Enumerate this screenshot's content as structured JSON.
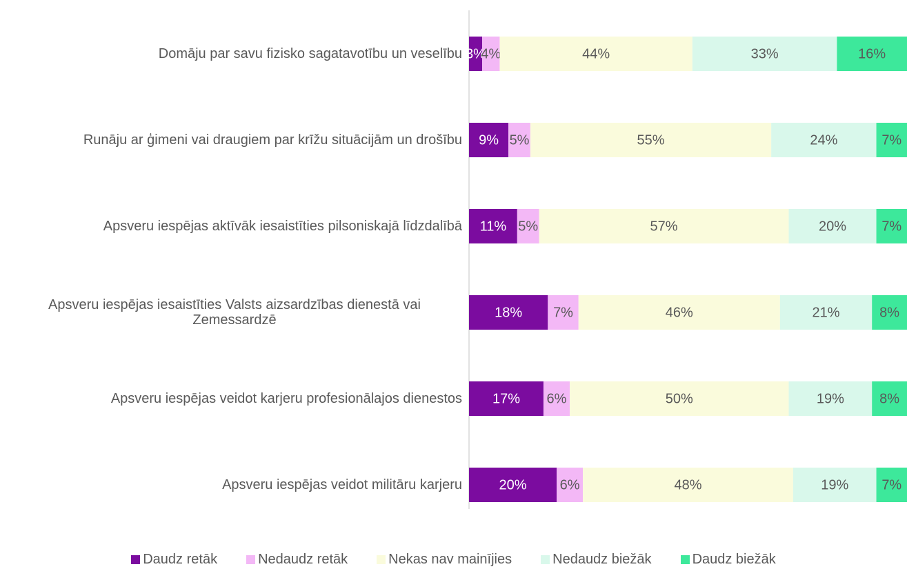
{
  "chart_data": {
    "type": "stacked-bar-horizontal",
    "categories": [
      "Domāju par savu fizisko sagatavotību un veselību",
      "Runāju ar ģimeni vai draugiem par krīžu situācijām un drošību",
      "Apsveru iespējas aktīvāk iesaistīties pilsoniskajā līdzdalībā",
      "Apsveru iespējas iesaistīties Valsts aizsardzības dienestā vai Zemessardzē",
      "Apsveru iespējas veidot karjeru profesionālajos dienestos",
      "Apsveru iespējas veidot militāru karjeru"
    ],
    "series": [
      {
        "name": "Daudz retāk",
        "color": "#7b0c9f",
        "values": [
          3,
          9,
          11,
          18,
          17,
          20
        ],
        "value_labels": [
          "3%",
          "9%",
          "11%",
          "18%",
          "17%",
          "20%"
        ]
      },
      {
        "name": "Nedaudz retāk",
        "color": "#f3b8f6",
        "values": [
          4,
          5,
          5,
          7,
          6,
          6
        ],
        "value_labels": [
          "4%",
          "5%",
          "5%",
          "7%",
          "6%",
          "6%"
        ]
      },
      {
        "name": "Nekas nav mainījies",
        "color": "#fafbdc",
        "values": [
          44,
          55,
          57,
          46,
          50,
          48
        ],
        "value_labels": [
          "44%",
          "55%",
          "57%",
          "46%",
          "50%",
          "48%"
        ]
      },
      {
        "name": "Nedaudz biežāk",
        "color": "#d9f8eb",
        "values": [
          33,
          24,
          20,
          21,
          19,
          19
        ],
        "value_labels": [
          "33%",
          "24%",
          "20%",
          "21%",
          "19%",
          "19%"
        ]
      },
      {
        "name": "Daudz biežāk",
        "color": "#3de89b",
        "values": [
          16,
          7,
          7,
          8,
          8,
          7
        ],
        "value_labels": [
          "16%",
          "7%",
          "7%",
          "8%",
          "8%",
          "7%"
        ]
      }
    ],
    "legend": "bottom"
  }
}
